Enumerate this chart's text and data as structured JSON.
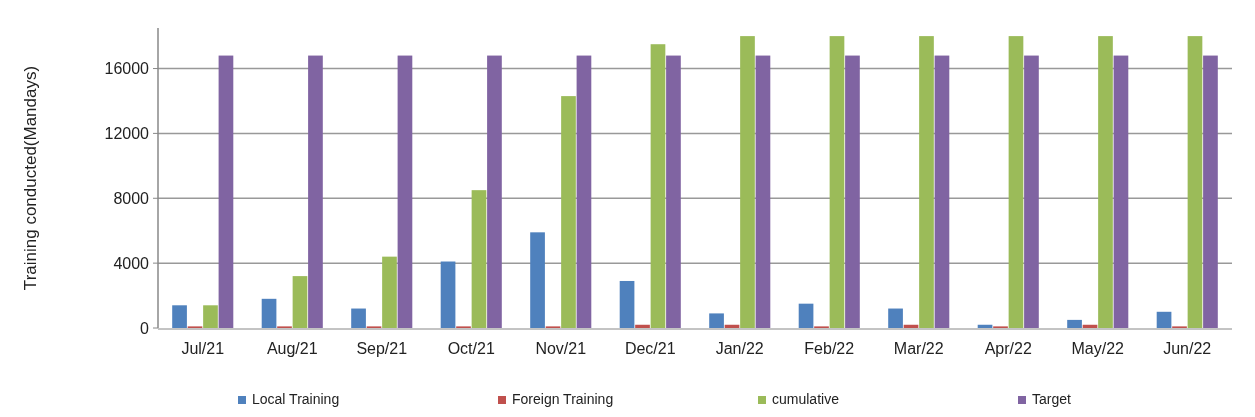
{
  "chart_data": {
    "type": "bar",
    "ylabel": "Training conducted(Mandays)",
    "categories": [
      "Jul/21",
      "Aug/21",
      "Sep/21",
      "Oct/21",
      "Nov/21",
      "Dec/21",
      "Jan/22",
      "Feb/22",
      "Mar/22",
      "Apr/22",
      "May/22",
      "Jun/22"
    ],
    "series": [
      {
        "name": "Local Training",
        "color": "#4f81bd",
        "values": [
          1400,
          1800,
          1200,
          4100,
          5900,
          2900,
          900,
          1500,
          1200,
          200,
          500,
          1000
        ]
      },
      {
        "name": "Foreign Training",
        "color": "#c0504d",
        "values": [
          100,
          100,
          100,
          100,
          100,
          200,
          200,
          100,
          200,
          100,
          200,
          100
        ]
      },
      {
        "name": "cumulative",
        "color": "#9bbb59",
        "values": [
          1400,
          3200,
          4400,
          8500,
          14300,
          17500,
          18000,
          18000,
          18000,
          18000,
          18000,
          18000
        ]
      },
      {
        "name": "Target",
        "color": "#8064a2",
        "values": [
          16800,
          16800,
          16800,
          16800,
          16800,
          16800,
          16800,
          16800,
          16800,
          16800,
          16800,
          16800
        ]
      }
    ],
    "ylim": [
      0,
      18500
    ],
    "yticks": [
      0,
      4000,
      8000,
      12000,
      16000
    ],
    "grid": "y",
    "legend": "bottom"
  }
}
